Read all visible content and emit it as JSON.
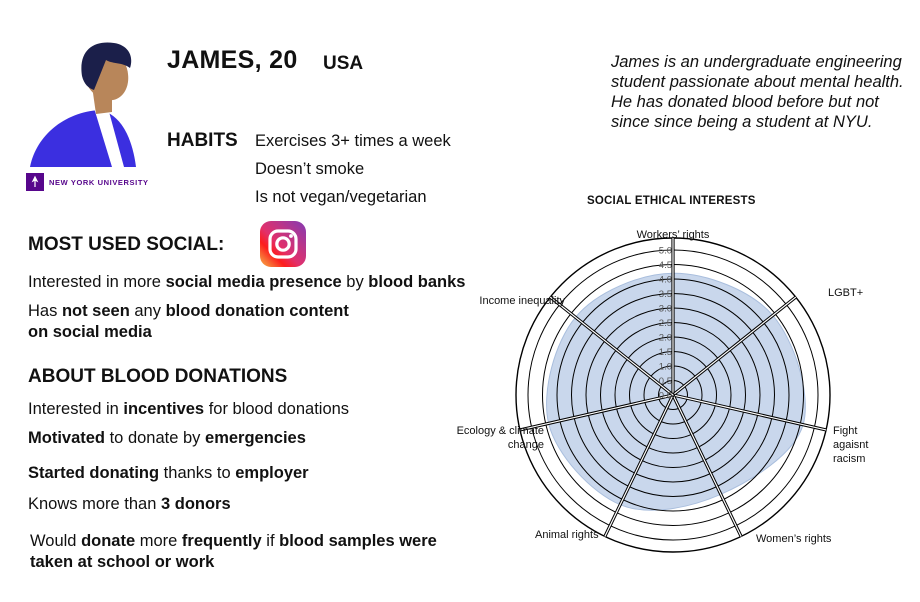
{
  "persona": {
    "name_age": "JAMES, 20",
    "country": "USA",
    "bio": "James is an undergraduate engineering student passionate about mental health. He has donated blood before but not since since being a student at NYU.",
    "university": "NEW YORK UNIVERSITY"
  },
  "habits": {
    "title": "HABITS",
    "items": [
      "Exercises 3+  times a week",
      "Doesn’t smoke",
      "Is not vegan/vegetarian"
    ]
  },
  "social": {
    "title": "MOST USED SOCIAL:",
    "icon": "instagram-icon",
    "line1": {
      "a": "Interested in more ",
      "b": "social media presence",
      "c": " by ",
      "d": "blood banks"
    },
    "line2": {
      "a": "Has ",
      "b": "not seen",
      "c": " any ",
      "d": "blood donation content",
      "e": "on social media"
    }
  },
  "donations": {
    "title": "ABOUT BLOOD DONATIONS",
    "line1": {
      "a": "Interested in ",
      "b": "incentives",
      "c": " for blood donations"
    },
    "line2": {
      "a": "Motivated",
      "b": " to donate by ",
      "c": "emergencies"
    },
    "line3": {
      "a": "Started donating",
      "b": " thanks to ",
      "c": "employer"
    },
    "line4": {
      "a": "Knows more than ",
      "b": "3 donors"
    },
    "line5": {
      "a": "Would ",
      "b": "donate",
      "c": " more ",
      "d": "frequently",
      "e": " if ",
      "f": "blood samples were",
      "g": "taken at school or work"
    }
  },
  "colors": {
    "avatar_shirt": "#3b2fe0",
    "avatar_skin": "#b8865a",
    "avatar_hair": "#1b1f4a",
    "radar_fill": "#c9d7ec",
    "radar_stroke": "#a9bedd",
    "nyu_purple": "#57068c"
  },
  "chart_data": {
    "type": "radar",
    "title": "SOCIAL ETHICAL INTERESTS",
    "axes": [
      "Workers’ rights",
      "LGBT+",
      "Fight agaisnt racism",
      "Women’s rights",
      "Animal rights",
      "Ecology & climate change",
      "Income inequality"
    ],
    "range": [
      0,
      5
    ],
    "tick_labels": [
      "0.0",
      "0.5",
      "1.0",
      "1.5",
      "2.0",
      "2.5",
      "3.0",
      "3.5",
      "4.0",
      "4.5",
      "5.0"
    ],
    "grid": true,
    "series": [
      {
        "values": [
          4.2,
          4.4,
          4.6,
          3.8,
          4.2,
          4.4,
          4.3
        ]
      }
    ]
  }
}
